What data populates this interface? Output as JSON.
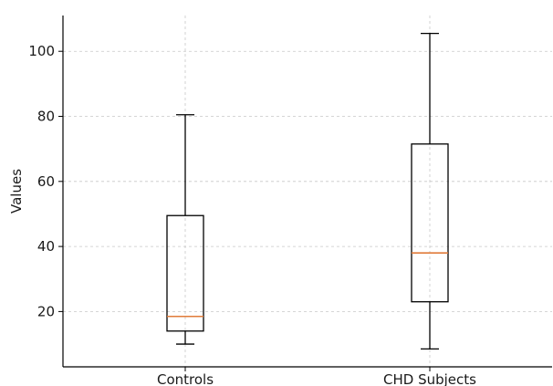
{
  "chart_data": {
    "type": "box",
    "title": "",
    "xlabel": "",
    "ylabel": "Values",
    "ylim": [
      3,
      111
    ],
    "yticks": [
      20,
      40,
      60,
      80,
      100
    ],
    "grid": true,
    "categories": [
      "Controls",
      "CHD Subjects"
    ],
    "boxes": [
      {
        "category": "Controls",
        "whisker_low": 10,
        "q1": 14,
        "median": 18.5,
        "q3": 49.5,
        "whisker_high": 80.5
      },
      {
        "category": "CHD Subjects",
        "whisker_low": 8.5,
        "q1": 23,
        "median": 38,
        "q3": 71.5,
        "whisker_high": 105.5
      }
    ],
    "colors": {
      "box": "#000000",
      "median": "#e07b39",
      "grid": "#c8c8c8",
      "axis": "#000000"
    }
  }
}
